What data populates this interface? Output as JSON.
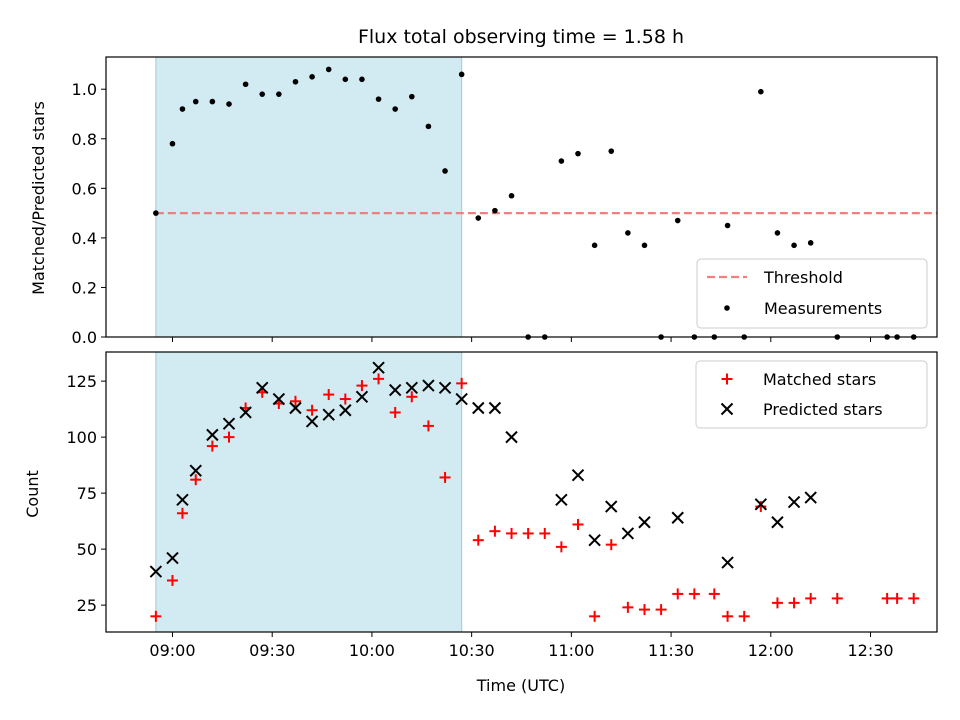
{
  "title": "Flux total observing time = 1.58 h",
  "chart_data": [
    {
      "type": "scatter",
      "panel": "top",
      "ylabel": "Matched/Predicted stars",
      "ylim": [
        0.0,
        1.13
      ],
      "yticks": [
        0.0,
        0.2,
        0.4,
        0.6,
        0.8,
        1.0
      ],
      "ytick_labels": [
        "0.0",
        "0.2",
        "0.4",
        "0.6",
        "0.8",
        "1.0"
      ],
      "threshold": {
        "name": "Threshold",
        "y": 0.5,
        "x_start": "08:55",
        "x_end": "12:50",
        "color": "#f08080"
      },
      "series": [
        {
          "name": "Measurements",
          "color": "#000000",
          "points": [
            [
              "08:55",
              0.5
            ],
            [
              "09:00",
              0.78
            ],
            [
              "09:03",
              0.92
            ],
            [
              "09:07",
              0.95
            ],
            [
              "09:12",
              0.95
            ],
            [
              "09:17",
              0.94
            ],
            [
              "09:22",
              1.02
            ],
            [
              "09:27",
              0.98
            ],
            [
              "09:32",
              0.98
            ],
            [
              "09:37",
              1.03
            ],
            [
              "09:42",
              1.05
            ],
            [
              "09:47",
              1.08
            ],
            [
              "09:52",
              1.04
            ],
            [
              "09:57",
              1.04
            ],
            [
              "10:02",
              0.96
            ],
            [
              "10:07",
              0.92
            ],
            [
              "10:12",
              0.97
            ],
            [
              "10:17",
              0.85
            ],
            [
              "10:22",
              0.67
            ],
            [
              "10:27",
              1.06
            ],
            [
              "10:32",
              0.48
            ],
            [
              "10:37",
              0.51
            ],
            [
              "10:42",
              0.57
            ],
            [
              "10:47",
              0.0
            ],
            [
              "10:52",
              0.0
            ],
            [
              "10:57",
              0.71
            ],
            [
              "11:02",
              0.74
            ],
            [
              "11:07",
              0.37
            ],
            [
              "11:12",
              0.75
            ],
            [
              "11:17",
              0.42
            ],
            [
              "11:22",
              0.37
            ],
            [
              "11:27",
              0.0
            ],
            [
              "11:32",
              0.47
            ],
            [
              "11:37",
              0.0
            ],
            [
              "11:43",
              0.0
            ],
            [
              "11:47",
              0.45
            ],
            [
              "11:52",
              0.0
            ],
            [
              "11:57",
              0.99
            ],
            [
              "12:02",
              0.42
            ],
            [
              "12:07",
              0.37
            ],
            [
              "12:12",
              0.38
            ],
            [
              "12:20",
              0.0
            ],
            [
              "12:35",
              0.0
            ],
            [
              "12:38",
              0.0
            ],
            [
              "12:43",
              0.0
            ]
          ]
        }
      ],
      "legend": {
        "position": "lower-right",
        "entries": [
          "Threshold",
          "Measurements"
        ]
      }
    },
    {
      "type": "scatter",
      "panel": "bottom",
      "xlabel": "Time (UTC)",
      "ylabel": "Count",
      "ylim": [
        13,
        138
      ],
      "yticks": [
        25,
        50,
        75,
        100,
        125
      ],
      "ytick_labels": [
        "25",
        "50",
        "75",
        "100",
        "125"
      ],
      "xlim": [
        "08:40",
        "12:50"
      ],
      "xticks": [
        "09:00",
        "09:30",
        "10:00",
        "10:30",
        "11:00",
        "11:30",
        "12:00",
        "12:30"
      ],
      "xtick_labels": [
        "09:00",
        "09:30",
        "10:00",
        "10:30",
        "11:00",
        "11:30",
        "12:00",
        "12:30"
      ],
      "series": [
        {
          "name": "Matched stars",
          "marker": "+",
          "color": "#ff0000",
          "points": [
            [
              "08:55",
              20
            ],
            [
              "09:00",
              36
            ],
            [
              "09:03",
              66
            ],
            [
              "09:07",
              81
            ],
            [
              "09:12",
              96
            ],
            [
              "09:17",
              100
            ],
            [
              "09:22",
              113
            ],
            [
              "09:27",
              120
            ],
            [
              "09:32",
              115
            ],
            [
              "09:37",
              116
            ],
            [
              "09:42",
              112
            ],
            [
              "09:47",
              119
            ],
            [
              "09:52",
              117
            ],
            [
              "09:57",
              123
            ],
            [
              "10:02",
              126
            ],
            [
              "10:07",
              111
            ],
            [
              "10:12",
              118
            ],
            [
              "10:17",
              105
            ],
            [
              "10:22",
              82
            ],
            [
              "10:27",
              124
            ],
            [
              "10:32",
              54
            ],
            [
              "10:37",
              58
            ],
            [
              "10:42",
              57
            ],
            [
              "10:47",
              57
            ],
            [
              "10:52",
              57
            ],
            [
              "10:57",
              51
            ],
            [
              "11:02",
              61
            ],
            [
              "11:07",
              20
            ],
            [
              "11:12",
              52
            ],
            [
              "11:17",
              24
            ],
            [
              "11:22",
              23
            ],
            [
              "11:27",
              23
            ],
            [
              "11:32",
              30
            ],
            [
              "11:37",
              30
            ],
            [
              "11:43",
              30
            ],
            [
              "11:47",
              20
            ],
            [
              "11:52",
              20
            ],
            [
              "11:57",
              69
            ],
            [
              "12:02",
              26
            ],
            [
              "12:07",
              26
            ],
            [
              "12:12",
              28
            ],
            [
              "12:20",
              28
            ],
            [
              "12:35",
              28
            ],
            [
              "12:38",
              28
            ],
            [
              "12:43",
              28
            ]
          ]
        },
        {
          "name": "Predicted stars",
          "marker": "x",
          "color": "#000000",
          "points": [
            [
              "08:55",
              40
            ],
            [
              "09:00",
              46
            ],
            [
              "09:03",
              72
            ],
            [
              "09:07",
              85
            ],
            [
              "09:12",
              101
            ],
            [
              "09:17",
              106
            ],
            [
              "09:22",
              111
            ],
            [
              "09:27",
              122
            ],
            [
              "09:32",
              117
            ],
            [
              "09:37",
              113
            ],
            [
              "09:42",
              107
            ],
            [
              "09:47",
              110
            ],
            [
              "09:52",
              112
            ],
            [
              "09:57",
              118
            ],
            [
              "10:02",
              131
            ],
            [
              "10:07",
              121
            ],
            [
              "10:12",
              122
            ],
            [
              "10:17",
              123
            ],
            [
              "10:22",
              122
            ],
            [
              "10:27",
              117
            ],
            [
              "10:32",
              113
            ],
            [
              "10:37",
              113
            ],
            [
              "10:42",
              100
            ],
            [
              "10:57",
              72
            ],
            [
              "11:02",
              83
            ],
            [
              "11:07",
              54
            ],
            [
              "11:12",
              69
            ],
            [
              "11:17",
              57
            ],
            [
              "11:22",
              62
            ],
            [
              "11:32",
              64
            ],
            [
              "11:47",
              44
            ],
            [
              "11:57",
              70
            ],
            [
              "12:02",
              62
            ],
            [
              "12:07",
              71
            ],
            [
              "12:12",
              73
            ]
          ]
        }
      ],
      "legend": {
        "position": "top-right",
        "entries": [
          "Matched stars",
          "Predicted stars"
        ]
      }
    }
  ],
  "observing_window": {
    "start": "08:55",
    "end": "10:27",
    "color": "#add8e6"
  }
}
